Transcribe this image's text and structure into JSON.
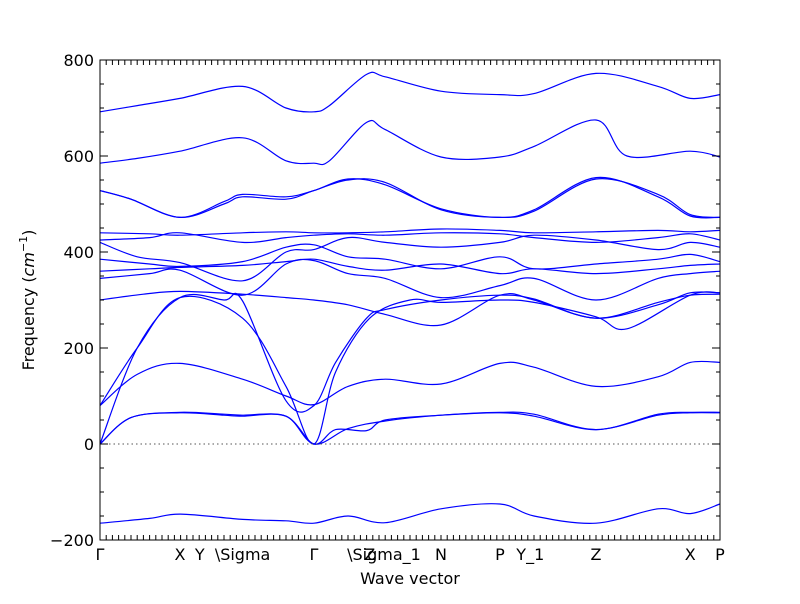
{
  "chart_data": {
    "type": "line",
    "title": "",
    "xlabel": "Wave vector",
    "ylabel_text": "Frequency (",
    "ylabel_unit": "cm",
    "ylabel_exp": "−1",
    "ylabel_close": ")",
    "ylim": [
      -200,
      800
    ],
    "xlim": [
      0,
      1
    ],
    "yticks": [
      -200,
      0,
      200,
      400,
      600,
      800
    ],
    "ytick_labels": [
      "−200",
      "0",
      "200",
      "400",
      "600",
      "800"
    ],
    "q_points": [
      {
        "label": "Γ",
        "x": 0.0
      },
      {
        "label": "X",
        "x": 0.129
      },
      {
        "label": "Y",
        "x": 0.161
      },
      {
        "label": "\\Sigma",
        "x": 0.23
      },
      {
        "label": "Γ",
        "x": 0.345
      },
      {
        "label": "Z",
        "x": 0.435
      },
      {
        "label": "\\Sigma_1",
        "x": 0.458
      },
      {
        "label": "N",
        "x": 0.55
      },
      {
        "label": "P",
        "x": 0.645
      },
      {
        "label": "Y_1",
        "x": 0.694
      },
      {
        "label": "Z",
        "x": 0.8
      },
      {
        "label": "X",
        "x": 0.952
      },
      {
        "label": "P",
        "x": 1.0
      }
    ],
    "zero_line": true,
    "line_color": "#0000ff",
    "series": [
      {
        "x": [
          0.0,
          0.08,
          0.13,
          0.23,
          0.3,
          0.345,
          0.4,
          0.46,
          0.55,
          0.645,
          0.7,
          0.8,
          0.9,
          0.952,
          1.0
        ],
        "y": [
          -165,
          -155,
          -146,
          -157,
          -160,
          -165,
          -150,
          -164,
          -135,
          -125,
          -150,
          -165,
          -135,
          -145,
          -125
        ]
      },
      {
        "x": [
          0.0,
          0.05,
          0.129,
          0.2,
          0.23,
          0.3,
          0.345,
          0.38,
          0.43,
          0.46,
          0.55,
          0.645,
          0.7,
          0.8,
          0.9,
          0.952,
          1.0
        ],
        "y": [
          0,
          55,
          65,
          60,
          58,
          58,
          0,
          30,
          28,
          50,
          60,
          65,
          58,
          30,
          60,
          65,
          65
        ]
      },
      {
        "x": [
          0.0,
          0.05,
          0.129,
          0.2,
          0.23,
          0.3,
          0.345,
          0.4,
          0.46,
          0.55,
          0.645,
          0.7,
          0.8,
          0.9,
          0.952,
          1.0
        ],
        "y": [
          0,
          55,
          66,
          62,
          60,
          58,
          0,
          32,
          48,
          60,
          66,
          62,
          30,
          62,
          66,
          66
        ]
      },
      {
        "x": [
          0.0,
          0.06,
          0.129,
          0.23,
          0.3,
          0.345,
          0.4,
          0.46,
          0.55,
          0.645,
          0.7,
          0.8,
          0.9,
          0.952,
          1.0
        ],
        "y": [
          80,
          145,
          168,
          135,
          100,
          82,
          120,
          135,
          125,
          168,
          160,
          120,
          140,
          170,
          170
        ]
      },
      {
        "x": [
          0.0,
          0.06,
          0.129,
          0.2,
          0.23,
          0.3,
          0.345,
          0.38,
          0.43,
          0.46,
          0.55,
          0.645,
          0.7,
          0.8,
          0.9,
          0.952,
          1.0
        ],
        "y": [
          0,
          200,
          305,
          300,
          298,
          90,
          80,
          170,
          262,
          280,
          300,
          310,
          302,
          262,
          295,
          310,
          312
        ]
      },
      {
        "x": [
          0.0,
          0.06,
          0.129,
          0.23,
          0.3,
          0.345,
          0.38,
          0.435,
          0.5,
          0.55,
          0.645,
          0.7,
          0.8,
          0.85,
          0.952,
          1.0
        ],
        "y": [
          80,
          200,
          305,
          262,
          120,
          0,
          150,
          262,
          300,
          295,
          300,
          295,
          265,
          240,
          310,
          315
        ]
      },
      {
        "x": [
          0.0,
          0.07,
          0.129,
          0.23,
          0.3,
          0.345,
          0.4,
          0.46,
          0.55,
          0.645,
          0.7,
          0.8,
          0.9,
          0.952,
          1.0
        ],
        "y": [
          300,
          312,
          318,
          312,
          305,
          300,
          290,
          270,
          248,
          310,
          300,
          262,
          290,
          315,
          315
        ]
      },
      {
        "x": [
          0.0,
          0.08,
          0.129,
          0.23,
          0.3,
          0.345,
          0.4,
          0.46,
          0.55,
          0.645,
          0.7,
          0.8,
          0.9,
          0.952,
          1.0
        ],
        "y": [
          345,
          355,
          362,
          310,
          375,
          382,
          355,
          345,
          305,
          330,
          345,
          300,
          345,
          355,
          360
        ]
      },
      {
        "x": [
          0.0,
          0.08,
          0.129,
          0.23,
          0.3,
          0.345,
          0.4,
          0.46,
          0.55,
          0.645,
          0.7,
          0.8,
          0.9,
          0.952,
          1.0
        ],
        "y": [
          360,
          365,
          368,
          372,
          380,
          385,
          370,
          362,
          375,
          355,
          365,
          355,
          365,
          372,
          375
        ]
      },
      {
        "x": [
          0.0,
          0.08,
          0.129,
          0.23,
          0.3,
          0.345,
          0.4,
          0.46,
          0.55,
          0.645,
          0.7,
          0.8,
          0.9,
          0.952,
          1.0
        ],
        "y": [
          385,
          375,
          370,
          380,
          410,
          415,
          390,
          385,
          365,
          390,
          365,
          375,
          385,
          395,
          380
        ]
      },
      {
        "x": [
          0.0,
          0.06,
          0.129,
          0.23,
          0.3,
          0.345,
          0.4,
          0.46,
          0.55,
          0.645,
          0.7,
          0.8,
          0.9,
          0.952,
          1.0
        ],
        "y": [
          420,
          390,
          378,
          340,
          400,
          405,
          430,
          420,
          410,
          420,
          435,
          425,
          405,
          420,
          410
        ]
      },
      {
        "x": [
          0.0,
          0.08,
          0.129,
          0.23,
          0.3,
          0.345,
          0.4,
          0.46,
          0.55,
          0.645,
          0.7,
          0.8,
          0.9,
          0.952,
          1.0
        ],
        "y": [
          425,
          430,
          440,
          420,
          430,
          435,
          438,
          435,
          440,
          438,
          430,
          420,
          430,
          438,
          425
        ]
      },
      {
        "x": [
          0.0,
          0.08,
          0.129,
          0.23,
          0.3,
          0.345,
          0.4,
          0.46,
          0.55,
          0.645,
          0.7,
          0.8,
          0.9,
          0.952,
          1.0
        ],
        "y": [
          440,
          438,
          435,
          440,
          442,
          440,
          440,
          442,
          448,
          445,
          440,
          442,
          445,
          442,
          445
        ]
      },
      {
        "x": [
          0.0,
          0.05,
          0.129,
          0.2,
          0.23,
          0.3,
          0.345,
          0.4,
          0.46,
          0.55,
          0.645,
          0.7,
          0.8,
          0.9,
          0.952,
          1.0
        ],
        "y": [
          528,
          510,
          472,
          500,
          515,
          510,
          528,
          550,
          545,
          488,
          472,
          485,
          552,
          520,
          478,
          472
        ]
      },
      {
        "x": [
          0.0,
          0.05,
          0.129,
          0.2,
          0.23,
          0.3,
          0.345,
          0.4,
          0.46,
          0.55,
          0.645,
          0.7,
          0.8,
          0.9,
          0.952,
          1.0
        ],
        "y": [
          528,
          510,
          472,
          505,
          520,
          515,
          528,
          552,
          540,
          490,
          472,
          488,
          555,
          515,
          475,
          472
        ]
      },
      {
        "x": [
          0.0,
          0.06,
          0.129,
          0.23,
          0.3,
          0.345,
          0.37,
          0.43,
          0.46,
          0.55,
          0.645,
          0.7,
          0.8,
          0.85,
          0.952,
          1.0
        ],
        "y": [
          585,
          595,
          610,
          638,
          590,
          585,
          590,
          670,
          655,
          598,
          598,
          620,
          675,
          600,
          610,
          598
        ]
      },
      {
        "x": [
          0.0,
          0.06,
          0.129,
          0.23,
          0.3,
          0.345,
          0.37,
          0.43,
          0.46,
          0.55,
          0.645,
          0.7,
          0.8,
          0.9,
          0.952,
          1.0
        ],
        "y": [
          692,
          705,
          720,
          745,
          700,
          692,
          705,
          770,
          765,
          735,
          728,
          730,
          772,
          745,
          720,
          728
        ]
      }
    ]
  }
}
